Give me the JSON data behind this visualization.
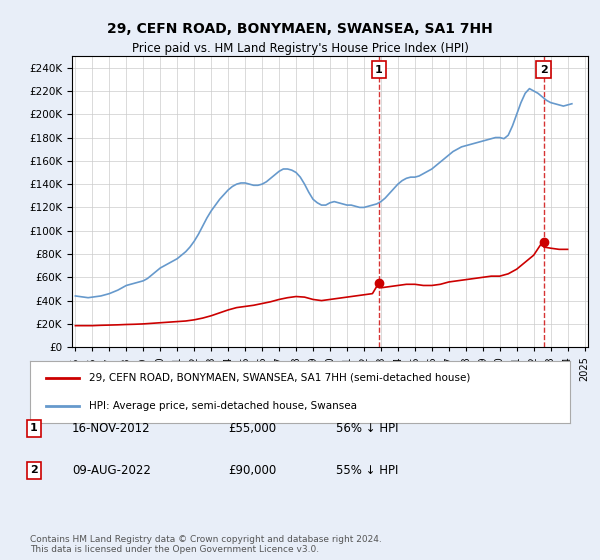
{
  "title": "29, CEFN ROAD, BONYMAEN, SWANSEA, SA1 7HH",
  "subtitle": "Price paid vs. HM Land Registry's House Price Index (HPI)",
  "ylabel_ticks": [
    "£0",
    "£20K",
    "£40K",
    "£60K",
    "£80K",
    "£100K",
    "£120K",
    "£140K",
    "£160K",
    "£180K",
    "£200K",
    "£220K",
    "£240K"
  ],
  "ytick_values": [
    0,
    20000,
    40000,
    60000,
    80000,
    100000,
    120000,
    140000,
    160000,
    180000,
    200000,
    220000,
    240000
  ],
  "ylim": [
    0,
    250000
  ],
  "background_color": "#e8eef8",
  "plot_background": "#ffffff",
  "hpi_color": "#6699cc",
  "price_color": "#cc0000",
  "hpi_data": {
    "years": [
      1995.0,
      1995.25,
      1995.5,
      1995.75,
      1996.0,
      1996.25,
      1996.5,
      1996.75,
      1997.0,
      1997.25,
      1997.5,
      1997.75,
      1998.0,
      1998.25,
      1998.5,
      1998.75,
      1999.0,
      1999.25,
      1999.5,
      1999.75,
      2000.0,
      2000.25,
      2000.5,
      2000.75,
      2001.0,
      2001.25,
      2001.5,
      2001.75,
      2002.0,
      2002.25,
      2002.5,
      2002.75,
      2003.0,
      2003.25,
      2003.5,
      2003.75,
      2004.0,
      2004.25,
      2004.5,
      2004.75,
      2005.0,
      2005.25,
      2005.5,
      2005.75,
      2006.0,
      2006.25,
      2006.5,
      2006.75,
      2007.0,
      2007.25,
      2007.5,
      2007.75,
      2008.0,
      2008.25,
      2008.5,
      2008.75,
      2009.0,
      2009.25,
      2009.5,
      2009.75,
      2010.0,
      2010.25,
      2010.5,
      2010.75,
      2011.0,
      2011.25,
      2011.5,
      2011.75,
      2012.0,
      2012.25,
      2012.5,
      2012.75,
      2013.0,
      2013.25,
      2013.5,
      2013.75,
      2014.0,
      2014.25,
      2014.5,
      2014.75,
      2015.0,
      2015.25,
      2015.5,
      2015.75,
      2016.0,
      2016.25,
      2016.5,
      2016.75,
      2017.0,
      2017.25,
      2017.5,
      2017.75,
      2018.0,
      2018.25,
      2018.5,
      2018.75,
      2019.0,
      2019.25,
      2019.5,
      2019.75,
      2020.0,
      2020.25,
      2020.5,
      2020.75,
      2021.0,
      2021.25,
      2021.5,
      2021.75,
      2022.0,
      2022.25,
      2022.5,
      2022.75,
      2023.0,
      2023.25,
      2023.5,
      2023.75,
      2024.0,
      2024.25
    ],
    "values": [
      44000,
      43500,
      43000,
      42500,
      43000,
      43500,
      44000,
      45000,
      46000,
      47500,
      49000,
      51000,
      53000,
      54000,
      55000,
      56000,
      57000,
      59000,
      62000,
      65000,
      68000,
      70000,
      72000,
      74000,
      76000,
      79000,
      82000,
      86000,
      91000,
      97000,
      104000,
      111000,
      117000,
      122000,
      127000,
      131000,
      135000,
      138000,
      140000,
      141000,
      141000,
      140000,
      139000,
      139000,
      140000,
      142000,
      145000,
      148000,
      151000,
      153000,
      153000,
      152000,
      150000,
      146000,
      140000,
      133000,
      127000,
      124000,
      122000,
      122000,
      124000,
      125000,
      124000,
      123000,
      122000,
      122000,
      121000,
      120000,
      120000,
      121000,
      122000,
      123000,
      125000,
      128000,
      132000,
      136000,
      140000,
      143000,
      145000,
      146000,
      146000,
      147000,
      149000,
      151000,
      153000,
      156000,
      159000,
      162000,
      165000,
      168000,
      170000,
      172000,
      173000,
      174000,
      175000,
      176000,
      177000,
      178000,
      179000,
      180000,
      180000,
      179000,
      182000,
      190000,
      200000,
      210000,
      218000,
      222000,
      220000,
      218000,
      215000,
      212000,
      210000,
      209000,
      208000,
      207000,
      208000,
      209000
    ]
  },
  "price_data": {
    "years": [
      1995.0,
      1995.5,
      1996.0,
      1996.5,
      1997.0,
      1997.5,
      1998.0,
      1998.5,
      1999.0,
      1999.5,
      2000.0,
      2000.5,
      2001.0,
      2001.5,
      2002.0,
      2002.5,
      2003.0,
      2003.5,
      2004.0,
      2004.5,
      2005.0,
      2005.5,
      2006.0,
      2006.5,
      2007.0,
      2007.5,
      2008.0,
      2008.5,
      2009.0,
      2009.5,
      2010.0,
      2010.5,
      2011.0,
      2011.5,
      2012.0,
      2012.5,
      2012.87,
      2013.0,
      2013.5,
      2014.0,
      2014.5,
      2015.0,
      2015.5,
      2016.0,
      2016.5,
      2017.0,
      2017.5,
      2018.0,
      2018.5,
      2019.0,
      2019.5,
      2020.0,
      2020.5,
      2021.0,
      2021.5,
      2022.0,
      2022.5,
      2022.6,
      2023.0,
      2023.5,
      2024.0
    ],
    "values": [
      18500,
      18500,
      18500,
      18800,
      19000,
      19200,
      19500,
      19700,
      20000,
      20500,
      21000,
      21500,
      22000,
      22500,
      23500,
      25000,
      27000,
      29500,
      32000,
      34000,
      35000,
      36000,
      37500,
      39000,
      41000,
      42500,
      43500,
      43000,
      41000,
      40000,
      41000,
      42000,
      43000,
      44000,
      45000,
      46000,
      55000,
      51000,
      52000,
      53000,
      54000,
      54000,
      53000,
      53000,
      54000,
      56000,
      57000,
      58000,
      59000,
      60000,
      61000,
      61000,
      63000,
      67000,
      73000,
      79000,
      90000,
      86000,
      85000,
      84000,
      84000
    ]
  },
  "sale1": {
    "year": 2012.87,
    "price": 55000,
    "label": "1",
    "pct": "56%",
    "date": "16-NOV-2012"
  },
  "sale2": {
    "year": 2022.58,
    "price": 90000,
    "label": "2",
    "pct": "55%",
    "date": "09-AUG-2022"
  },
  "legend_entries": [
    "29, CEFN ROAD, BONYMAEN, SWANSEA, SA1 7HH (semi-detached house)",
    "HPI: Average price, semi-detached house, Swansea"
  ],
  "table_rows": [
    {
      "num": "1",
      "date": "16-NOV-2012",
      "price": "£55,000",
      "pct": "56% ↓ HPI"
    },
    {
      "num": "2",
      "date": "09-AUG-2022",
      "price": "£90,000",
      "pct": "55% ↓ HPI"
    }
  ],
  "footer": "Contains HM Land Registry data © Crown copyright and database right 2024.\nThis data is licensed under the Open Government Licence v3.0.",
  "xticks": [
    1995,
    1996,
    1997,
    1998,
    1999,
    2000,
    2001,
    2002,
    2003,
    2004,
    2005,
    2006,
    2007,
    2008,
    2009,
    2010,
    2011,
    2012,
    2013,
    2014,
    2015,
    2016,
    2017,
    2018,
    2019,
    2020,
    2021,
    2022,
    2023,
    2024,
    2025
  ]
}
